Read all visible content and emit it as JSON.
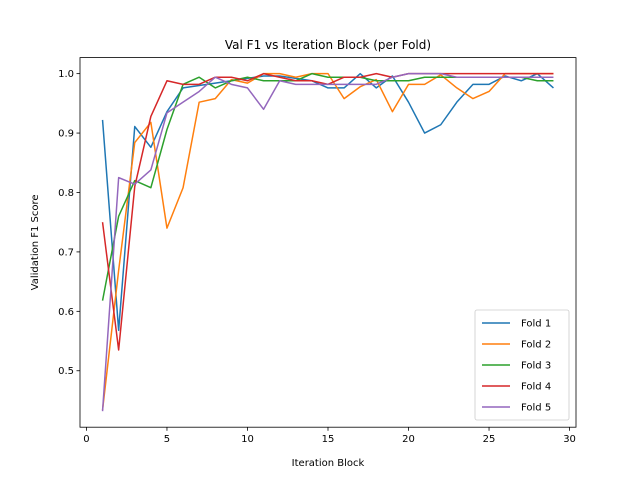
{
  "chart_data": {
    "type": "line",
    "title": "Val F1 vs Iteration Block (per Fold)",
    "xlabel": "Iteration Block",
    "ylabel": "Validation F1 Score",
    "xlim": [
      -0.4,
      30.4
    ],
    "ylim": [
      0.405,
      1.027
    ],
    "xticks": [
      0,
      5,
      10,
      15,
      20,
      25,
      30
    ],
    "yticks": [
      0.5,
      0.6,
      0.7,
      0.8,
      0.9,
      1.0
    ],
    "ytick_labels": [
      "0.5",
      "0.6",
      "0.7",
      "0.8",
      "0.9",
      "1.0"
    ],
    "grid": false,
    "legend_position": "lower-right",
    "x": [
      1,
      2,
      3,
      4,
      5,
      6,
      7,
      8,
      9,
      10,
      11,
      12,
      13,
      14,
      15,
      16,
      17,
      18,
      19,
      20,
      21,
      22,
      23,
      24,
      25,
      26,
      27,
      28,
      29
    ],
    "series": [
      {
        "name": "Fold 1",
        "color": "#1f77b4",
        "values": [
          0.922,
          0.568,
          0.911,
          0.876,
          0.936,
          0.976,
          0.98,
          0.984,
          0.988,
          0.992,
          0.996,
          0.996,
          0.992,
          0.988,
          0.976,
          0.976,
          1.0,
          0.976,
          0.996,
          0.952,
          0.9,
          0.914,
          0.952,
          0.982,
          0.982,
          0.996,
          0.988,
          1.0,
          0.976
        ]
      },
      {
        "name": "Fold 2",
        "color": "#ff7f0e",
        "values": [
          0.434,
          0.669,
          0.884,
          0.918,
          0.74,
          0.808,
          0.952,
          0.958,
          0.99,
          0.984,
          1.0,
          1.0,
          0.994,
          1.0,
          1.0,
          0.958,
          0.978,
          0.99,
          0.936,
          0.982,
          0.982,
          0.998,
          0.976,
          0.958,
          0.97,
          1.0,
          1.0,
          1.0,
          1.0
        ]
      },
      {
        "name": "Fold 3",
        "color": "#2ca02c",
        "values": [
          0.618,
          0.76,
          0.82,
          0.808,
          0.906,
          0.982,
          0.994,
          0.976,
          0.988,
          0.994,
          0.988,
          0.988,
          0.988,
          1.0,
          0.994,
          0.994,
          0.994,
          0.988,
          0.988,
          0.988,
          0.994,
          0.994,
          0.994,
          0.994,
          0.994,
          0.994,
          0.994,
          0.988,
          0.988
        ]
      },
      {
        "name": "Fold 4",
        "color": "#d62728",
        "values": [
          0.75,
          0.535,
          0.81,
          0.928,
          0.988,
          0.982,
          0.982,
          0.994,
          0.994,
          0.988,
          1.0,
          0.994,
          0.988,
          0.988,
          0.982,
          0.994,
          0.994,
          1.0,
          0.994,
          1.0,
          1.0,
          1.0,
          1.0,
          1.0,
          1.0,
          1.0,
          1.0,
          1.0,
          1.0
        ]
      },
      {
        "name": "Fold 5",
        "color": "#9467bd",
        "values": [
          0.432,
          0.825,
          0.814,
          0.838,
          0.934,
          0.952,
          0.97,
          0.994,
          0.982,
          0.976,
          0.94,
          0.988,
          0.982,
          0.982,
          0.982,
          0.982,
          0.982,
          0.982,
          0.994,
          1.0,
          1.0,
          1.0,
          0.994,
          0.994,
          0.994,
          0.994,
          0.994,
          0.994,
          0.994
        ]
      }
    ]
  }
}
